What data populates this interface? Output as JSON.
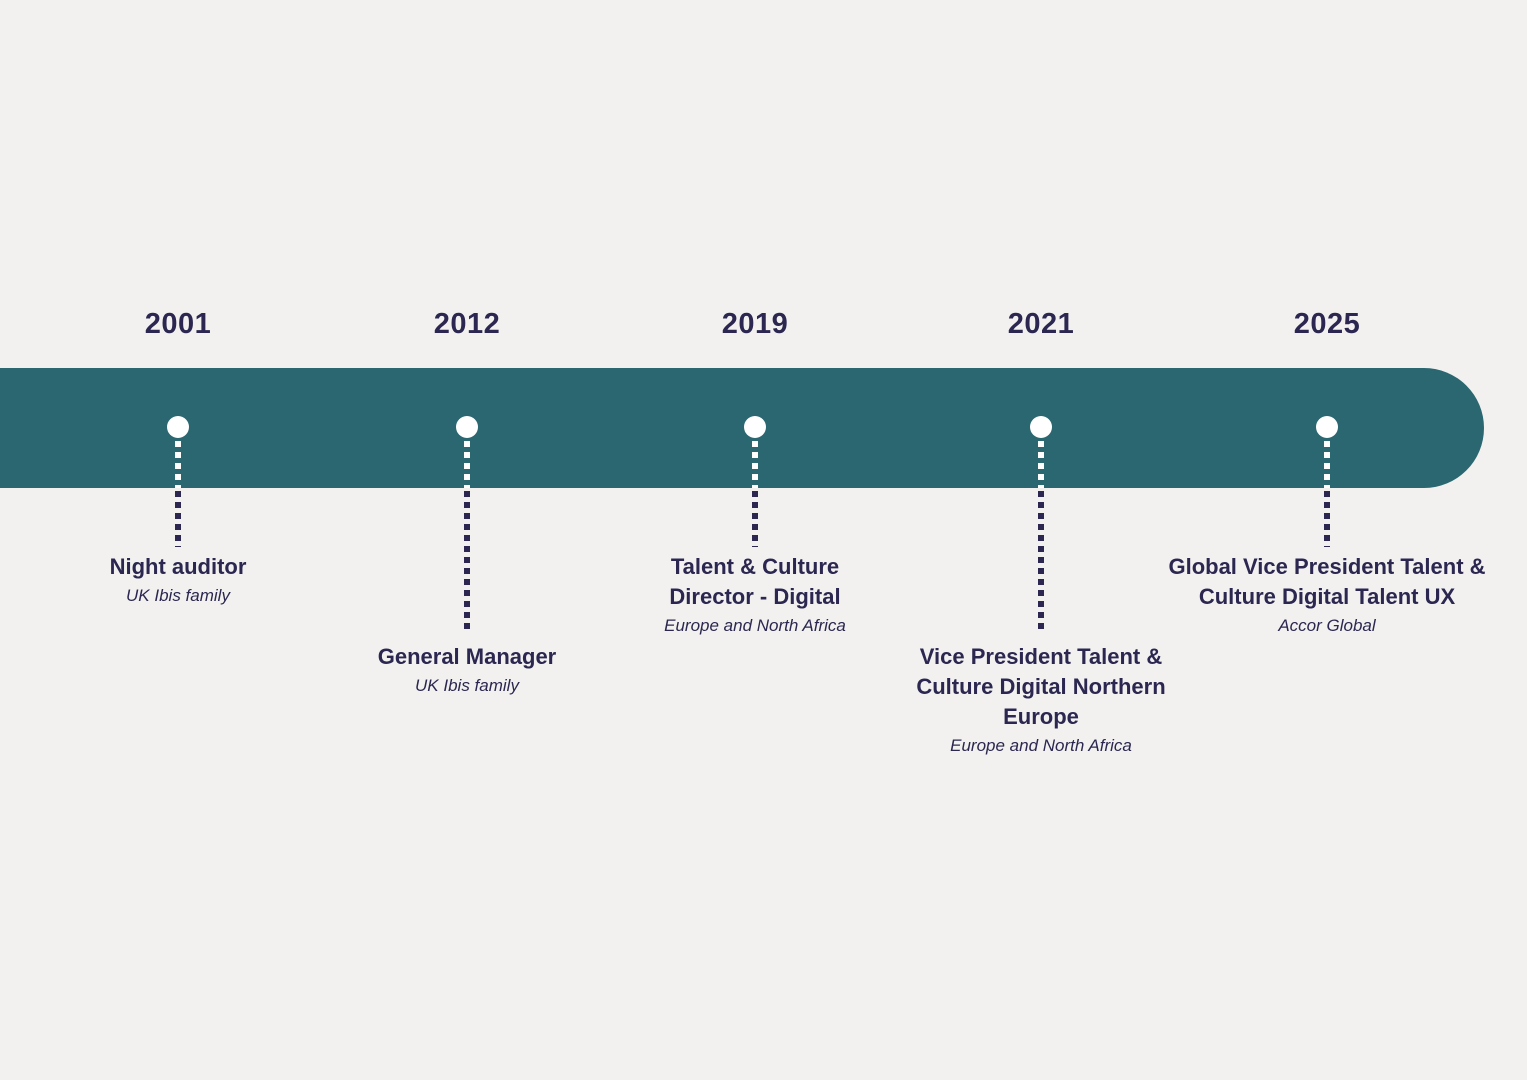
{
  "colors": {
    "background": "#F2F1EF",
    "bar": "#2A6770",
    "text": "#2B2750",
    "dot": "#FFFFFF"
  },
  "timeline": {
    "milestones": [
      {
        "year": "2001",
        "title": "Night auditor",
        "subtitle": "UK Ibis family"
      },
      {
        "year": "2012",
        "title": "General Manager",
        "subtitle": "UK Ibis family"
      },
      {
        "year": "2019",
        "title": "Talent & Culture Director - Digital",
        "subtitle": "Europe and North Africa"
      },
      {
        "year": "2021",
        "title": "Vice President Talent & Culture Digital Northern Europe",
        "subtitle": "Europe and North Africa"
      },
      {
        "year": "2025",
        "title": "Global Vice President Talent & Culture Digital Talent UX",
        "subtitle": "Accor Global"
      }
    ]
  }
}
